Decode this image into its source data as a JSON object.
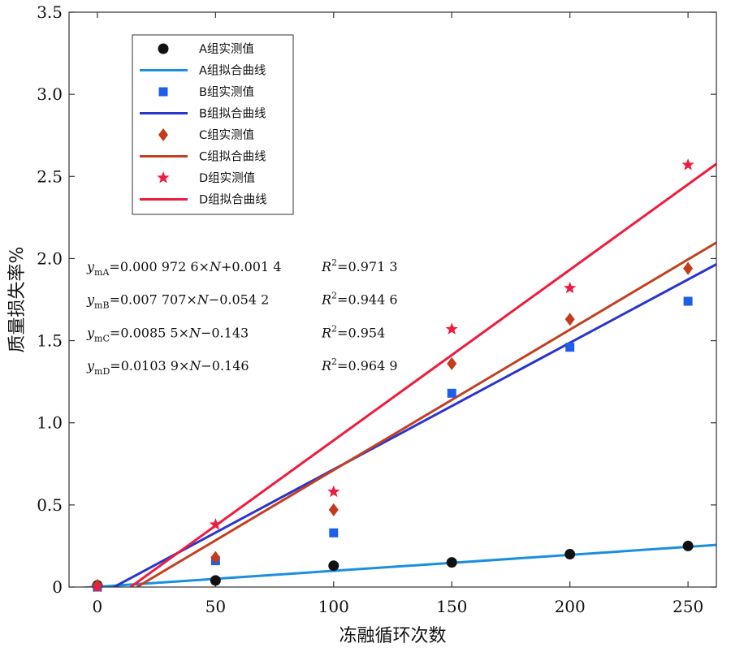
{
  "chart_data": {
    "type": "scatter",
    "xlabel": "冻融循环次数",
    "ylabel": "质量损失率%",
    "xlim": [
      -12,
      262
    ],
    "ylim": [
      0,
      3.5
    ],
    "xticks": [
      0,
      50,
      100,
      150,
      200,
      250
    ],
    "xtick_labels": [
      "0",
      "50",
      "100",
      "150",
      "200",
      "250"
    ],
    "yticks": [
      0,
      0.5,
      1.0,
      1.5,
      2.0,
      2.5,
      3.0,
      3.5
    ],
    "ytick_labels": [
      "0",
      "0.5",
      "1.0",
      "1.5",
      "2.0",
      "2.5",
      "3.0",
      "3.5"
    ],
    "x": [
      0,
      50,
      100,
      150,
      200,
      250
    ],
    "series": [
      {
        "name": "A组实测值",
        "kind": "points",
        "marker": "circle",
        "color": "#111111",
        "values": [
          0.01,
          0.04,
          0.13,
          0.15,
          0.2,
          0.25
        ]
      },
      {
        "name": "A组拟合曲线",
        "kind": "line",
        "color": "#1a8fe0",
        "slope": 0.0009726,
        "intercept": 0.0014
      },
      {
        "name": "B组实测值",
        "kind": "points",
        "marker": "square",
        "color": "#1f5ee8",
        "values": [
          0.0,
          0.16,
          0.33,
          1.18,
          1.46,
          1.74
        ]
      },
      {
        "name": "B组拟合曲线",
        "kind": "line",
        "color": "#2a35d0",
        "slope": 0.007707,
        "intercept": -0.0542
      },
      {
        "name": "C组实测值",
        "kind": "points",
        "marker": "diamond",
        "color": "#c23b1a",
        "values": [
          0.01,
          0.18,
          0.47,
          1.36,
          1.63,
          1.94
        ]
      },
      {
        "name": "C组拟合曲线",
        "kind": "line",
        "color": "#c24020",
        "slope": 0.00855,
        "intercept": -0.143
      },
      {
        "name": "D组实测值",
        "kind": "points",
        "marker": "star",
        "color": "#ee1c3e",
        "values": [
          0.0,
          0.38,
          0.58,
          1.57,
          1.82,
          2.57
        ]
      },
      {
        "name": "D组拟合曲线",
        "kind": "line",
        "color": "#ee1c3e",
        "slope": 0.01039,
        "intercept": -0.146
      }
    ],
    "legend_position": "top-left",
    "annotations": [
      {
        "var": "y",
        "sub": "mA",
        "rest": "=0.000 972 6×",
        "N": "N",
        "tail": "+0.001 4",
        "r2": "=0.971 3"
      },
      {
        "var": "y",
        "sub": "mB",
        "rest": "=0.007 707×",
        "N": "N",
        "tail": "−0.054 2",
        "r2": "=0.944 6"
      },
      {
        "var": "y",
        "sub": "mC",
        "rest": "=0.0085 5×",
        "N": "N",
        "tail": "−0.143",
        "r2": "=0.954"
      },
      {
        "var": "y",
        "sub": "mD",
        "rest": "=0.0103 9×",
        "N": "N",
        "tail": "−0.146",
        "r2": "=0.964 9"
      }
    ],
    "r2_label": "R",
    "r2_sup": "2"
  }
}
